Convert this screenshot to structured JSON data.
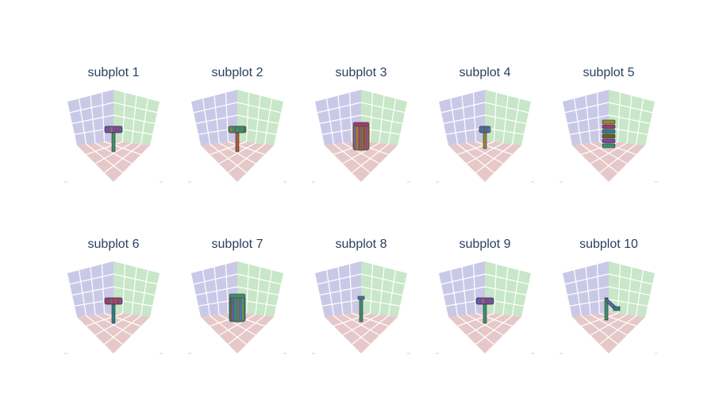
{
  "figure": {
    "background": "#ffffff",
    "title_color": "#2a3f5f",
    "grid_color": "#ffffff",
    "wall_left_color": "#c9c9e7",
    "wall_right_color": "#c8e6c8",
    "floor_color": "#e6c8c8",
    "grid_rows": 2,
    "grid_cols": 5
  },
  "chart_data": [
    {
      "type": "mesh3d",
      "title": "subplot 1",
      "object": "hammer-like mesh"
    },
    {
      "type": "mesh3d",
      "title": "subplot 2",
      "object": "hammer-like mesh"
    },
    {
      "type": "mesh3d",
      "title": "subplot 3",
      "object": "box-like mesh"
    },
    {
      "type": "mesh3d",
      "title": "subplot 4",
      "object": "small hammer-like mesh"
    },
    {
      "type": "mesh3d",
      "title": "subplot 5",
      "object": "tower-like mesh"
    },
    {
      "type": "mesh3d",
      "title": "subplot 6",
      "object": "T-shaped mesh"
    },
    {
      "type": "mesh3d",
      "title": "subplot 7",
      "object": "box-like mesh"
    },
    {
      "type": "mesh3d",
      "title": "subplot 8",
      "object": "thin stick mesh"
    },
    {
      "type": "mesh3d",
      "title": "subplot 9",
      "object": "T-shaped mesh"
    },
    {
      "type": "mesh3d",
      "title": "subplot 10",
      "object": "bent stick mesh"
    }
  ]
}
